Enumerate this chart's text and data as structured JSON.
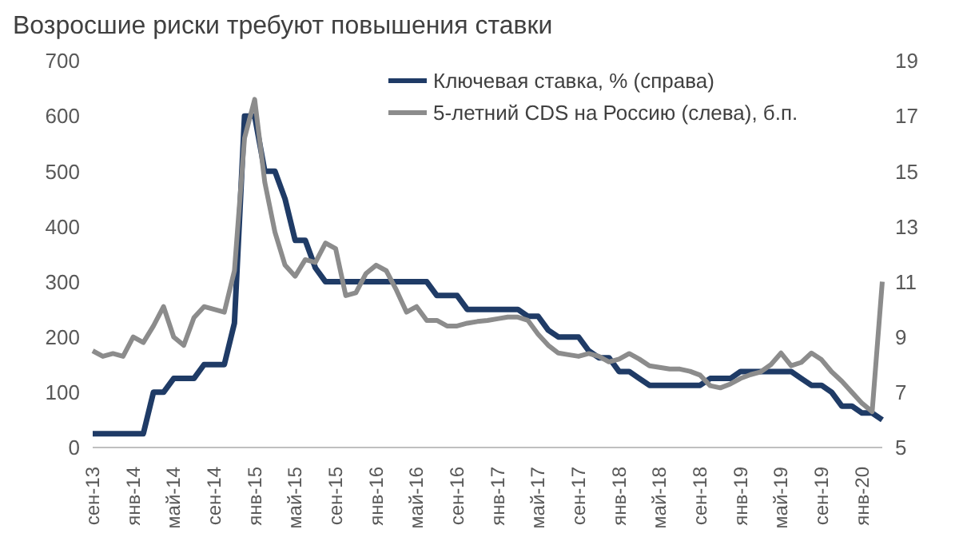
{
  "chart_data": {
    "type": "line",
    "title": "Возросшие риски требуют повышения ставки",
    "categories": [
      "сен-13",
      null,
      null,
      null,
      "янв-14",
      null,
      null,
      null,
      "май-14",
      null,
      null,
      null,
      "сен-14",
      null,
      null,
      null,
      "янв-15",
      null,
      null,
      null,
      "май-15",
      null,
      null,
      null,
      "сен-15",
      null,
      null,
      null,
      "янв-16",
      null,
      null,
      null,
      "май-16",
      null,
      null,
      null,
      "сен-16",
      null,
      null,
      null,
      "янв-17",
      null,
      null,
      null,
      "май-17",
      null,
      null,
      null,
      "сен-17",
      null,
      null,
      null,
      "янв-18",
      null,
      null,
      null,
      "май-18",
      null,
      null,
      null,
      "сен-18",
      null,
      null,
      null,
      "янв-19",
      null,
      null,
      null,
      "май-19",
      null,
      null,
      null,
      "сен-19",
      null,
      null,
      null,
      "янв-20",
      null,
      null
    ],
    "series": [
      {
        "name": "Ключевая ставка, % (справа)",
        "color": "#1f3b66",
        "axis": "y2",
        "values": [
          5.5,
          5.5,
          5.5,
          5.5,
          5.5,
          5.5,
          7,
          7,
          7.5,
          7.5,
          7.5,
          8,
          8,
          8,
          9.5,
          17,
          17,
          15,
          15,
          14,
          12.5,
          12.5,
          11.5,
          11,
          11,
          11,
          11,
          11,
          11,
          11,
          11,
          11,
          11,
          11,
          10.5,
          10.5,
          10.5,
          10,
          10,
          10,
          10,
          10,
          10,
          9.75,
          9.75,
          9.25,
          9,
          9,
          9,
          8.5,
          8.25,
          8.25,
          7.75,
          7.75,
          7.5,
          7.25,
          7.25,
          7.25,
          7.25,
          7.25,
          7.25,
          7.5,
          7.5,
          7.5,
          7.75,
          7.75,
          7.75,
          7.75,
          7.75,
          7.75,
          7.5,
          7.25,
          7.25,
          7,
          6.5,
          6.5,
          6.25,
          6.25,
          6
        ]
      },
      {
        "name": "5-летний CDS на Россию (слева), б.п.",
        "color": "#8c8c8c",
        "values": [
          175,
          165,
          170,
          165,
          200,
          190,
          220,
          255,
          200,
          185,
          235,
          255,
          250,
          245,
          320,
          560,
          630,
          480,
          390,
          330,
          310,
          340,
          335,
          370,
          360,
          275,
          280,
          315,
          330,
          320,
          285,
          245,
          255,
          230,
          230,
          220,
          220,
          225,
          228,
          230,
          233,
          236,
          236,
          230,
          205,
          185,
          171,
          168,
          165,
          170,
          165,
          155,
          160,
          170,
          160,
          148,
          145,
          142,
          142,
          138,
          131,
          112,
          108,
          115,
          125,
          132,
          137,
          150,
          171,
          148,
          154,
          171,
          159,
          137,
          120,
          100,
          80,
          65,
          300
        ]
      }
    ],
    "ylim": [
      0,
      700
    ],
    "yticks": [
      0,
      100,
      200,
      300,
      400,
      500,
      600,
      700
    ],
    "y2lim": [
      5,
      19
    ],
    "y2ticks": [
      5,
      7,
      9,
      11,
      13,
      15,
      17,
      19
    ],
    "grid": false,
    "legend": "top right",
    "marker": "none",
    "line_style": "solid"
  }
}
